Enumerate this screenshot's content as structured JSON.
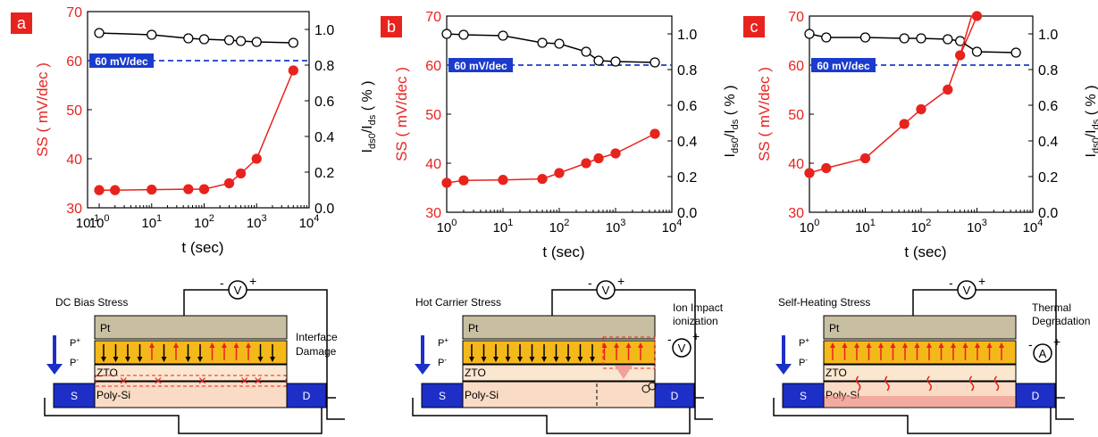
{
  "panels": [
    {
      "label": "a"
    },
    {
      "label": "b"
    },
    {
      "label": "c"
    }
  ],
  "chart_data": [
    {
      "type": "line",
      "panel": "a",
      "xlabel": "t (sec)",
      "ylabel_left": "SS ( mV/dec )",
      "ylabel_right": "Ids0/Ids ( % )",
      "x_scale": "log",
      "xlim": [
        0.6,
        10000
      ],
      "ylim_left": [
        30,
        70
      ],
      "ylim_right": [
        0.0,
        1.1
      ],
      "x_ticks": [
        "10⁰",
        "10¹",
        "10²",
        "10³",
        "10⁴"
      ],
      "x_tick_first": "10⁻¹ (0.6)",
      "left_ticks": [
        "30",
        "40",
        "50",
        "60",
        "70"
      ],
      "right_ticks": [
        "0.0",
        "0.2",
        "0.4",
        "0.6",
        "0.8",
        "1.0"
      ],
      "reference_line": {
        "label": "60 mV/dec",
        "y": 60
      },
      "series": [
        {
          "axis": "left",
          "color": "#e8231e",
          "marker": "filled",
          "points": [
            [
              1,
              33.6
            ],
            [
              2,
              33.6
            ],
            [
              10,
              33.7
            ],
            [
              50,
              33.8
            ],
            [
              100,
              33.8
            ],
            [
              300,
              35
            ],
            [
              500,
              37
            ],
            [
              1000,
              40
            ],
            [
              5000,
              58
            ]
          ]
        },
        {
          "axis": "right",
          "color": "#000000",
          "marker": "open",
          "points": [
            [
              1,
              0.98
            ],
            [
              10,
              0.97
            ],
            [
              50,
              0.95
            ],
            [
              100,
              0.945
            ],
            [
              300,
              0.94
            ],
            [
              500,
              0.935
            ],
            [
              1000,
              0.93
            ],
            [
              5000,
              0.925
            ]
          ]
        }
      ]
    },
    {
      "type": "line",
      "panel": "b",
      "xlabel": "t (sec)",
      "ylabel_left": "SS ( mV/dec )",
      "ylabel_right": "Ids0/Ids ( % )",
      "x_scale": "log",
      "xlim": [
        1,
        10000
      ],
      "ylim_left": [
        30,
        70
      ],
      "ylim_right": [
        0.0,
        1.1
      ],
      "x_ticks": [
        "10⁰",
        "10¹",
        "10²",
        "10³",
        "10⁴"
      ],
      "left_ticks": [
        "30",
        "40",
        "50",
        "60",
        "70"
      ],
      "right_ticks": [
        "0.0",
        "0.2",
        "0.4",
        "0.6",
        "0.8",
        "1.0"
      ],
      "reference_line": {
        "label": "60 mV/dec",
        "y": 60
      },
      "series": [
        {
          "axis": "left",
          "color": "#e8231e",
          "marker": "filled",
          "points": [
            [
              1,
              36
            ],
            [
              2,
              36.5
            ],
            [
              10,
              36.6
            ],
            [
              50,
              36.8
            ],
            [
              100,
              38
            ],
            [
              300,
              40
            ],
            [
              500,
              41
            ],
            [
              1000,
              42
            ],
            [
              5000,
              46
            ]
          ]
        },
        {
          "axis": "right",
          "color": "#000000",
          "marker": "open",
          "points": [
            [
              1,
              1.0
            ],
            [
              2,
              0.995
            ],
            [
              10,
              0.99
            ],
            [
              50,
              0.95
            ],
            [
              100,
              0.945
            ],
            [
              300,
              0.9
            ],
            [
              500,
              0.85
            ],
            [
              1000,
              0.845
            ],
            [
              5000,
              0.84
            ]
          ]
        }
      ]
    },
    {
      "type": "line",
      "panel": "c",
      "xlabel": "t (sec)",
      "ylabel_left": "SS ( mV/dec )",
      "ylabel_right": "Ids0/Ids ( % )",
      "x_scale": "log",
      "xlim": [
        1,
        10000
      ],
      "ylim_left": [
        30,
        70
      ],
      "ylim_right": [
        0.0,
        1.1
      ],
      "x_ticks": [
        "10⁰",
        "10¹",
        "10²",
        "10³",
        "10⁴"
      ],
      "left_ticks": [
        "30",
        "40",
        "50",
        "60",
        "70"
      ],
      "right_ticks": [
        "0.0",
        "0.2",
        "0.4",
        "0.6",
        "0.8",
        "1.0"
      ],
      "reference_line": {
        "label": "60 mV/dec",
        "y": 60
      },
      "series": [
        {
          "axis": "left",
          "color": "#e8231e",
          "marker": "filled",
          "points": [
            [
              1,
              38
            ],
            [
              2,
              39
            ],
            [
              10,
              41
            ],
            [
              50,
              48
            ],
            [
              100,
              51
            ],
            [
              300,
              55
            ],
            [
              500,
              62
            ],
            [
              1000,
              70
            ]
          ]
        },
        {
          "axis": "right",
          "color": "#000000",
          "marker": "open",
          "points": [
            [
              1,
              1.0
            ],
            [
              2,
              0.98
            ],
            [
              10,
              0.98
            ],
            [
              50,
              0.975
            ],
            [
              100,
              0.975
            ],
            [
              300,
              0.97
            ],
            [
              500,
              0.96
            ],
            [
              1000,
              0.9
            ],
            [
              5000,
              0.895
            ]
          ]
        }
      ]
    }
  ],
  "diagrams": [
    {
      "title": "DC Bias Stress",
      "note": "Interface Damage",
      "meter": "V",
      "layers": {
        "top": "Pt",
        "ferro": "P⁺",
        "ferro2": "P⁻",
        "oxide": "ZTO",
        "channel": "Poly-Si",
        "source": "S",
        "drain": "D"
      }
    },
    {
      "title": "Hot Carrier Stress",
      "note": "Ion Impact ionization",
      "meter": "V",
      "layers": {
        "top": "Pt",
        "ferro": "P⁺",
        "ferro2": "P⁻",
        "oxide": "ZTO",
        "channel": "Poly-Si",
        "source": "S",
        "drain": "D"
      }
    },
    {
      "title": "Self-Heating Stress",
      "note": "Thermal Degradation",
      "meter": "A",
      "layers": {
        "top": "Pt",
        "ferro": "P⁺",
        "ferro2": "P⁻",
        "oxide": "ZTO",
        "channel": "Poly-Si",
        "source": "S",
        "drain": "D"
      }
    }
  ]
}
